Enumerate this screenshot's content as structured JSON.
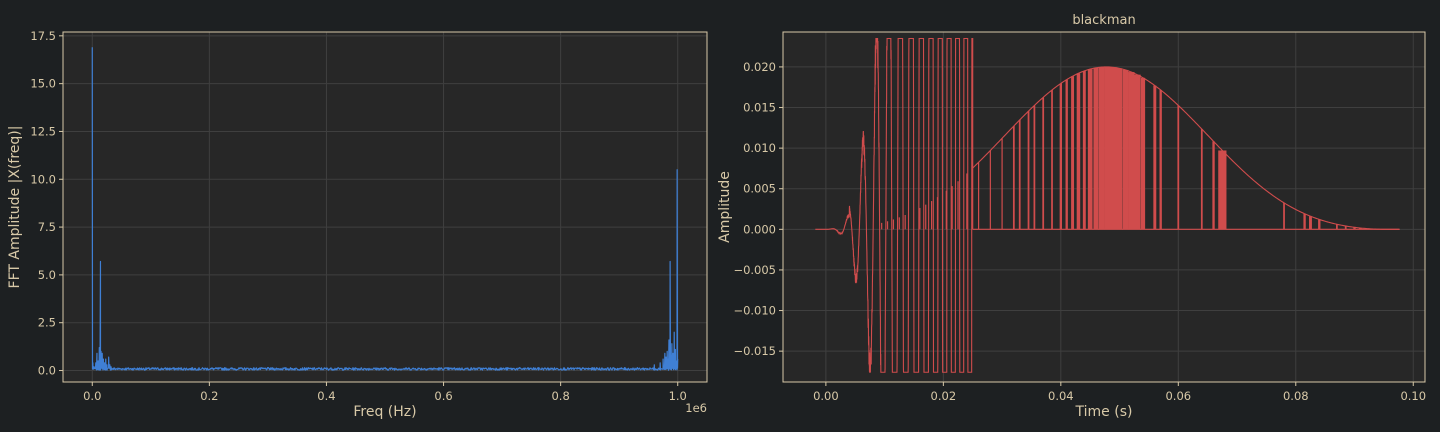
{
  "figure": {
    "background": "#1d2022"
  },
  "theme": {
    "axes_face": "#272727",
    "frame": "#d8c9a8",
    "grid": "#3f3f3f",
    "text": "#d8c9a8"
  },
  "chart_data": [
    {
      "type": "line",
      "title": "",
      "xlabel": "Freq (Hz)",
      "ylabel": "FFT Amplitude |X(freq)|",
      "x_offset_text": "1e6",
      "xlim": [
        -0.05,
        1.05
      ],
      "ylim": [
        -0.6,
        17.7
      ],
      "xticks": [
        0.0,
        0.2,
        0.4,
        0.6,
        0.8,
        1.0
      ],
      "xtick_labels": [
        "0.0",
        "0.2",
        "0.4",
        "0.6",
        "0.8",
        "1.0"
      ],
      "yticks": [
        0.0,
        2.5,
        5.0,
        7.5,
        10.0,
        12.5,
        15.0,
        17.5
      ],
      "ytick_labels": [
        "0.0",
        "2.5",
        "5.0",
        "7.5",
        "10.0",
        "12.5",
        "15.0",
        "17.5"
      ],
      "grid": true,
      "series": [
        {
          "color": "#3f7fd4",
          "noise_level": 0.15,
          "x": [
            0.0,
            0.001,
            0.003,
            0.006,
            0.008,
            0.01,
            0.012,
            0.013,
            0.014,
            0.015,
            0.016,
            0.017,
            0.019,
            0.021,
            0.023,
            0.025,
            0.028,
            0.03,
            0.032,
            0.96,
            0.97,
            0.975,
            0.978,
            0.98,
            0.982,
            0.984,
            0.985,
            0.986,
            0.987,
            0.988,
            0.99,
            0.992,
            0.994,
            0.996,
            0.998,
            0.999,
            1.0
          ],
          "y": [
            16.9,
            0.4,
            0.2,
            0.4,
            0.9,
            0.5,
            1.2,
            0.8,
            5.7,
            1.0,
            0.7,
            0.9,
            0.6,
            0.4,
            0.6,
            0.3,
            0.7,
            0.3,
            0.2,
            0.3,
            0.4,
            0.6,
            0.9,
            0.7,
            1.0,
            0.6,
            1.6,
            0.7,
            5.7,
            0.8,
            1.4,
            0.9,
            2.0,
            1.1,
            0.5,
            10.5,
            0.6
          ]
        }
      ]
    },
    {
      "type": "line",
      "title": "blackman",
      "xlabel": "Time (s)",
      "ylabel": "Amplitude",
      "xlim": [
        -0.0073,
        0.102
      ],
      "ylim": [
        -0.0188,
        0.0243
      ],
      "xticks": [
        0.0,
        0.02,
        0.04,
        0.06,
        0.08,
        0.1
      ],
      "xtick_labels": [
        "0.00",
        "0.02",
        "0.04",
        "0.06",
        "0.08",
        "0.10"
      ],
      "yticks": [
        -0.015,
        -0.01,
        -0.005,
        0.0,
        0.005,
        0.01,
        0.015,
        0.02
      ],
      "ytick_labels": [
        "−0.015",
        "−0.010",
        "−0.005",
        "0.000",
        "0.005",
        "0.010",
        "0.015",
        "0.020"
      ],
      "grid": true,
      "series": [
        {
          "color": "#d04c4c",
          "envelope_peak": 0.02,
          "envelope_center": 0.0475,
          "x_start": -0.0018,
          "x_end": 0.0977,
          "signal_start": 0.0,
          "signal_end": 0.0955,
          "oscillation_until": 0.025,
          "burst_centers": [
            0.0095,
            0.0105,
            0.0115,
            0.0125,
            0.0135,
            0.016,
            0.017,
            0.018,
            0.019,
            0.0205,
            0.0215,
            0.0225,
            0.024,
            0.026,
            0.028,
            0.03,
            0.032,
            0.033,
            0.0345,
            0.0355,
            0.037,
            0.0385,
            0.04,
            0.041,
            0.042,
            0.043,
            0.044,
            0.045,
            0.046,
            0.047,
            0.048,
            0.049,
            0.05,
            0.051,
            0.052,
            0.053,
            0.054,
            0.056,
            0.057,
            0.06,
            0.064,
            0.066,
            0.0675,
            0.078,
            0.0815,
            0.0825,
            0.084,
            0.087,
            0.0885,
            0.09,
            0.091
          ],
          "burst_widths": [
            0.0002,
            0.0002,
            0.0002,
            0.0002,
            0.0002,
            0.0002,
            0.0002,
            0.0002,
            0.0002,
            0.0002,
            0.0002,
            0.0002,
            0.0002,
            0.0002,
            0.0002,
            0.0002,
            0.0003,
            0.0003,
            0.0003,
            0.0003,
            0.0003,
            0.0003,
            0.0004,
            0.0004,
            0.0005,
            0.0006,
            0.0005,
            0.0008,
            0.0009,
            0.001,
            0.0011,
            0.0012,
            0.0009,
            0.001,
            0.0011,
            0.0012,
            0.0007,
            0.0005,
            0.0004,
            0.0003,
            0.0003,
            0.0004,
            0.0014,
            0.0003,
            0.0004,
            0.0005,
            0.0004,
            0.0003,
            0.0003,
            0.0004,
            0.0005
          ]
        }
      ]
    }
  ]
}
